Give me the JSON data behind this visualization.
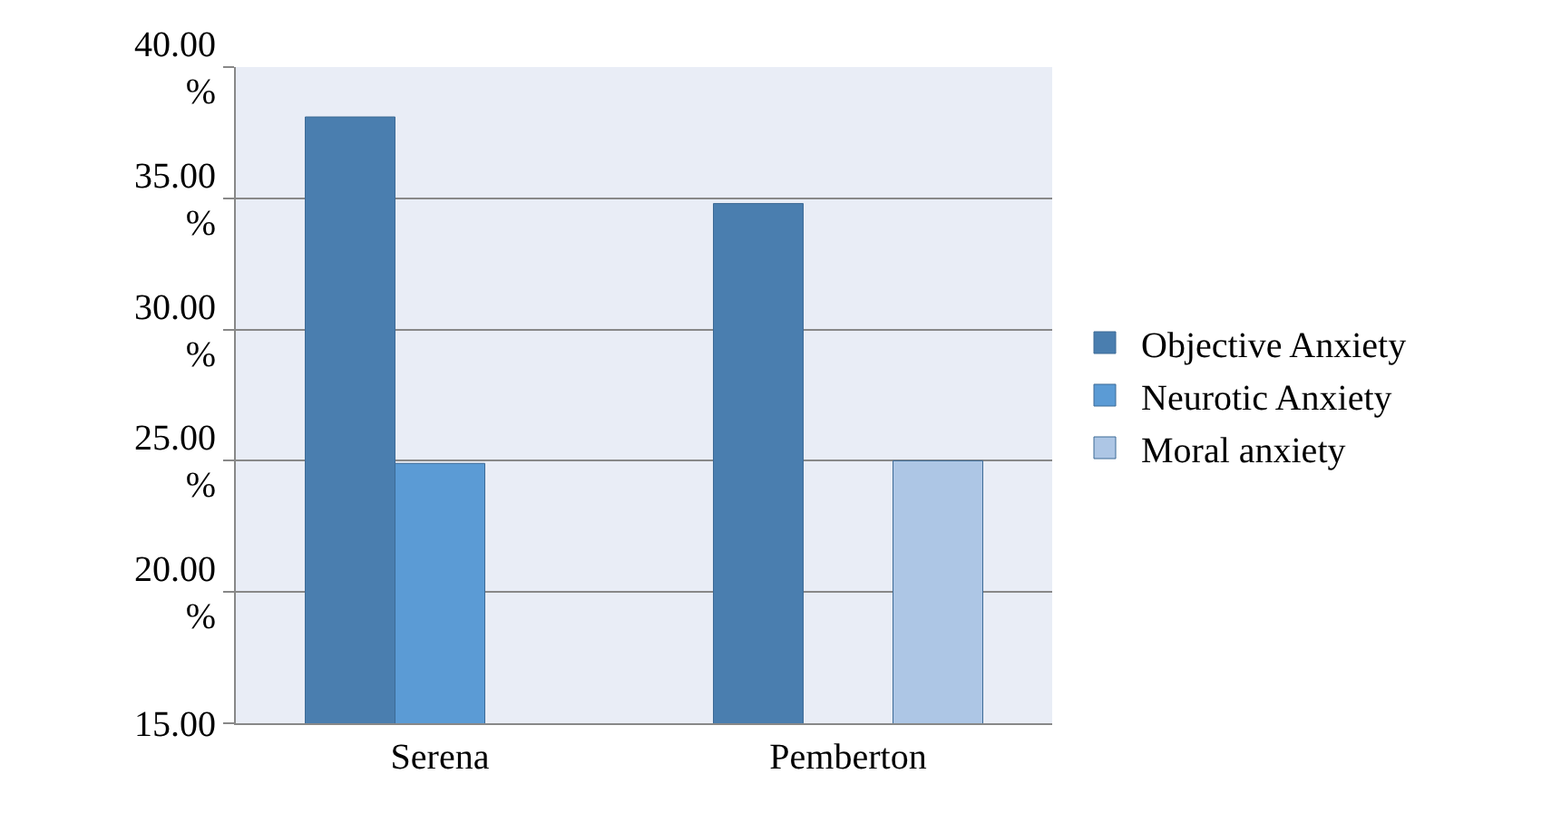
{
  "chart_data": {
    "type": "bar",
    "categories": [
      "Serena",
      "Pemberton"
    ],
    "series": [
      {
        "name": "Objective Anxiety",
        "color": "#4a7eaf",
        "values": [
          38.1,
          34.8
        ]
      },
      {
        "name": "Neurotic Anxiety",
        "color": "#5b9bd5",
        "values": [
          24.9,
          null
        ]
      },
      {
        "name": "Moral anxiety",
        "color": "#adc6e5",
        "values": [
          null,
          25.0
        ]
      }
    ],
    "ylim": [
      15,
      40
    ],
    "yticks": [
      {
        "value": 15,
        "label": "15.00"
      },
      {
        "value": 20,
        "label": "20.00\n%"
      },
      {
        "value": 25,
        "label": "25.00\n%"
      },
      {
        "value": 30,
        "label": "30.00\n%"
      },
      {
        "value": 35,
        "label": "35.00\n%"
      },
      {
        "value": 40,
        "label": "40.00\n%"
      }
    ],
    "grid": "y",
    "legend": "right"
  }
}
